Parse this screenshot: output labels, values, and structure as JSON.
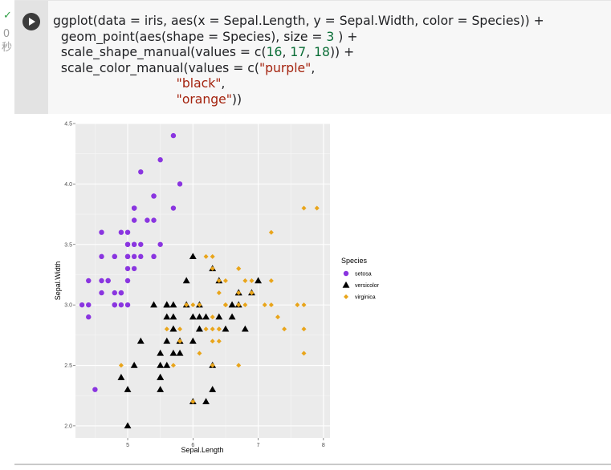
{
  "status": {
    "check": "✓",
    "time_value": "0",
    "time_unit": "秒"
  },
  "code": {
    "l1_a": "ggplot(data = iris, aes(x = Sepal.Length, y = Sepal.Width, color = Species)) +",
    "l2_a": "  geom_point(aes(shape = Species), size = ",
    "l2_num": "3",
    "l2_b": " ) +",
    "l3_a": "  scale_shape_manual(values = c(",
    "l3_n1": "16",
    "l3_c1": ", ",
    "l3_n2": "17",
    "l3_c2": ", ",
    "l3_n3": "18",
    "l3_b": ")) +",
    "l4_a": "  scale_color_manual(values = c(",
    "l4_s": "\"purple\"",
    "l4_b": ",",
    "l5_pad": "                               ",
    "l5_s": "\"black\"",
    "l5_b": ",",
    "l6_pad": "                               ",
    "l6_s": "\"orange\"",
    "l6_b": "))"
  },
  "colors": {
    "setosa": "#8a35e0",
    "versicolor": "#000000",
    "virginica": "#e9a51b",
    "panel": "#ebebeb",
    "grid": "#ffffff"
  },
  "chart_data": {
    "type": "scatter",
    "title": "",
    "xlabel": "Sepal.Length",
    "ylabel": "Sepal.Width",
    "xlim": [
      4.2,
      8.1
    ],
    "ylim": [
      1.9,
      4.5
    ],
    "xticks": [
      5,
      6,
      7,
      8
    ],
    "yticks": [
      2.0,
      2.5,
      3.0,
      3.5,
      4.0,
      4.5
    ],
    "xtick_labels": [
      "5",
      "6",
      "7",
      "8"
    ],
    "ytick_labels": [
      "2.0",
      "2.5",
      "3.0",
      "3.5",
      "4.0",
      "4.5"
    ],
    "grid": true,
    "legend": {
      "title": "Species",
      "position": "right"
    },
    "series": [
      {
        "name": "setosa",
        "color": "#8a35e0",
        "shape": "circle",
        "points": [
          [
            5.1,
            3.5
          ],
          [
            4.9,
            3.0
          ],
          [
            4.7,
            3.2
          ],
          [
            4.6,
            3.1
          ],
          [
            5.0,
            3.6
          ],
          [
            5.4,
            3.9
          ],
          [
            4.6,
            3.4
          ],
          [
            5.0,
            3.4
          ],
          [
            4.4,
            2.9
          ],
          [
            4.9,
            3.1
          ],
          [
            5.4,
            3.7
          ],
          [
            4.8,
            3.4
          ],
          [
            4.8,
            3.0
          ],
          [
            4.3,
            3.0
          ],
          [
            5.8,
            4.0
          ],
          [
            5.7,
            4.4
          ],
          [
            5.4,
            3.9
          ],
          [
            5.1,
            3.5
          ],
          [
            5.7,
            3.8
          ],
          [
            5.1,
            3.8
          ],
          [
            5.4,
            3.4
          ],
          [
            5.1,
            3.7
          ],
          [
            4.6,
            3.6
          ],
          [
            5.1,
            3.3
          ],
          [
            4.8,
            3.4
          ],
          [
            5.0,
            3.0
          ],
          [
            5.0,
            3.4
          ],
          [
            5.2,
            3.5
          ],
          [
            5.2,
            3.4
          ],
          [
            4.7,
            3.2
          ],
          [
            4.8,
            3.1
          ],
          [
            5.4,
            3.4
          ],
          [
            5.2,
            4.1
          ],
          [
            5.5,
            4.2
          ],
          [
            4.9,
            3.1
          ],
          [
            5.0,
            3.2
          ],
          [
            5.5,
            3.5
          ],
          [
            4.9,
            3.6
          ],
          [
            4.4,
            3.0
          ],
          [
            5.1,
            3.4
          ],
          [
            5.0,
            3.5
          ],
          [
            4.5,
            2.3
          ],
          [
            4.4,
            3.2
          ],
          [
            5.0,
            3.5
          ],
          [
            5.1,
            3.8
          ],
          [
            4.8,
            3.0
          ],
          [
            5.1,
            3.8
          ],
          [
            4.6,
            3.2
          ],
          [
            5.3,
            3.7
          ],
          [
            5.0,
            3.3
          ]
        ]
      },
      {
        "name": "versicolor",
        "color": "#000000",
        "shape": "triangle",
        "points": [
          [
            7.0,
            3.2
          ],
          [
            6.4,
            3.2
          ],
          [
            6.9,
            3.1
          ],
          [
            5.5,
            2.3
          ],
          [
            6.5,
            2.8
          ],
          [
            5.7,
            2.8
          ],
          [
            6.3,
            3.3
          ],
          [
            4.9,
            2.4
          ],
          [
            6.6,
            2.9
          ],
          [
            5.2,
            2.7
          ],
          [
            5.0,
            2.0
          ],
          [
            5.9,
            3.0
          ],
          [
            6.0,
            2.2
          ],
          [
            6.1,
            2.9
          ],
          [
            5.6,
            2.9
          ],
          [
            6.7,
            3.1
          ],
          [
            5.6,
            3.0
          ],
          [
            5.8,
            2.7
          ],
          [
            6.2,
            2.2
          ],
          [
            5.6,
            2.5
          ],
          [
            5.9,
            3.2
          ],
          [
            6.1,
            2.8
          ],
          [
            6.3,
            2.5
          ],
          [
            6.1,
            2.8
          ],
          [
            6.4,
            2.9
          ],
          [
            6.6,
            3.0
          ],
          [
            6.8,
            2.8
          ],
          [
            6.7,
            3.0
          ],
          [
            6.0,
            2.9
          ],
          [
            5.7,
            2.6
          ],
          [
            5.5,
            2.4
          ],
          [
            5.5,
            2.4
          ],
          [
            5.8,
            2.7
          ],
          [
            6.0,
            2.7
          ],
          [
            5.4,
            3.0
          ],
          [
            6.0,
            3.4
          ],
          [
            6.7,
            3.1
          ],
          [
            6.3,
            2.3
          ],
          [
            5.6,
            3.0
          ],
          [
            5.5,
            2.5
          ],
          [
            5.5,
            2.6
          ],
          [
            6.1,
            3.0
          ],
          [
            5.8,
            2.6
          ],
          [
            5.0,
            2.3
          ],
          [
            5.6,
            2.7
          ],
          [
            5.7,
            3.0
          ],
          [
            5.7,
            2.9
          ],
          [
            6.2,
            2.9
          ],
          [
            5.1,
            2.5
          ],
          [
            5.7,
            2.8
          ]
        ]
      },
      {
        "name": "virginica",
        "color": "#e9a51b",
        "shape": "diamond",
        "points": [
          [
            6.3,
            3.3
          ],
          [
            5.8,
            2.7
          ],
          [
            7.1,
            3.0
          ],
          [
            6.3,
            2.9
          ],
          [
            6.5,
            3.0
          ],
          [
            7.6,
            3.0
          ],
          [
            4.9,
            2.5
          ],
          [
            7.3,
            2.9
          ],
          [
            6.7,
            2.5
          ],
          [
            7.2,
            3.6
          ],
          [
            6.5,
            3.2
          ],
          [
            6.4,
            2.7
          ],
          [
            6.8,
            3.0
          ],
          [
            5.7,
            2.5
          ],
          [
            5.8,
            2.8
          ],
          [
            6.4,
            3.2
          ],
          [
            6.5,
            3.0
          ],
          [
            7.7,
            3.8
          ],
          [
            7.7,
            2.6
          ],
          [
            6.0,
            2.2
          ],
          [
            6.9,
            3.2
          ],
          [
            5.6,
            2.8
          ],
          [
            7.7,
            2.8
          ],
          [
            6.3,
            2.7
          ],
          [
            6.7,
            3.3
          ],
          [
            7.2,
            3.2
          ],
          [
            6.2,
            2.8
          ],
          [
            6.1,
            3.0
          ],
          [
            6.4,
            2.8
          ],
          [
            7.2,
            3.0
          ],
          [
            7.4,
            2.8
          ],
          [
            7.9,
            3.8
          ],
          [
            6.4,
            2.8
          ],
          [
            6.3,
            2.8
          ],
          [
            6.1,
            2.6
          ],
          [
            7.7,
            3.0
          ],
          [
            6.3,
            3.4
          ],
          [
            6.4,
            3.1
          ],
          [
            6.0,
            3.0
          ],
          [
            6.9,
            3.1
          ],
          [
            6.7,
            3.1
          ],
          [
            6.9,
            3.1
          ],
          [
            5.8,
            2.7
          ],
          [
            6.8,
            3.2
          ],
          [
            6.7,
            3.3
          ],
          [
            6.7,
            3.0
          ],
          [
            6.3,
            2.5
          ],
          [
            6.5,
            3.0
          ],
          [
            6.2,
            3.4
          ],
          [
            5.9,
            3.0
          ]
        ]
      }
    ]
  }
}
